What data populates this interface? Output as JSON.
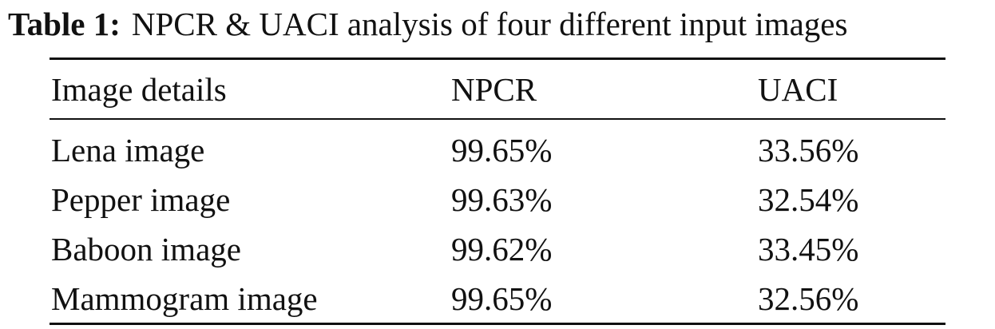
{
  "caption": {
    "label": "Table 1:",
    "text": "NPCR & UACI analysis of four different input images"
  },
  "table": {
    "headers": [
      "Image details",
      "NPCR",
      "UACI"
    ],
    "rows": [
      [
        "Lena image",
        "99.65%",
        "33.56%"
      ],
      [
        "Pepper image",
        "99.63%",
        "32.54%"
      ],
      [
        "Baboon image",
        "99.62%",
        "33.45%"
      ],
      [
        "Mammogram image",
        "99.65%",
        "32.56%"
      ]
    ]
  }
}
